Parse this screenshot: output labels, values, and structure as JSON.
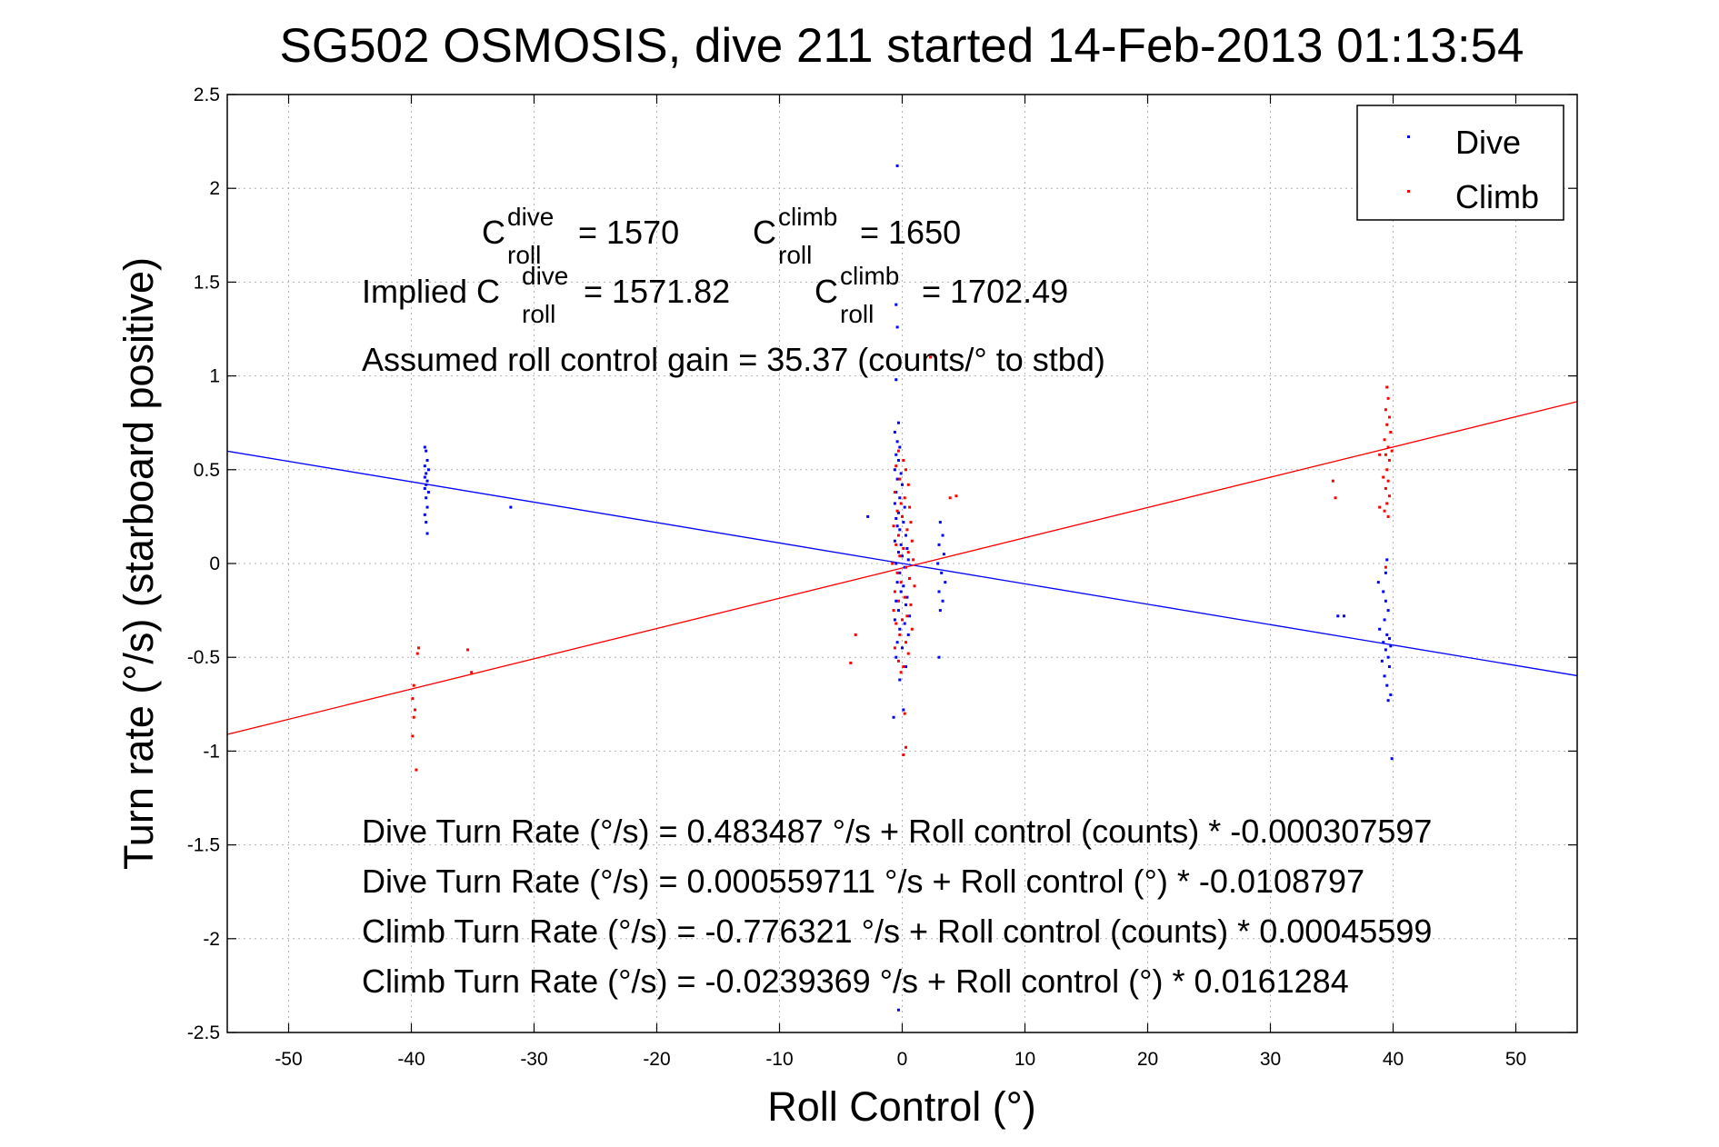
{
  "chart_data": {
    "type": "scatter",
    "title": "SG502 OSMOSIS, dive 211 started 14-Feb-2013 01:13:54",
    "xlabel": "Roll Control (°)",
    "ylabel": "Turn rate (°/s) (starboard positive)",
    "xlim": [
      -55,
      55
    ],
    "ylim": [
      -2.5,
      2.5
    ],
    "xticks": [
      -50,
      -40,
      -30,
      -20,
      -10,
      0,
      10,
      20,
      30,
      40,
      50
    ],
    "yticks": [
      -2.5,
      -2,
      -1.5,
      -1,
      -0.5,
      0,
      0.5,
      1,
      1.5,
      2,
      2.5
    ],
    "xtick_labels": [
      "-50",
      "-40",
      "-30",
      "-20",
      "-10",
      "0",
      "10",
      "20",
      "30",
      "40",
      "50"
    ],
    "ytick_labels": [
      "-2.5",
      "-2",
      "-1.5",
      "-1",
      "-0.5",
      "0",
      "0.5",
      "1",
      "1.5",
      "2",
      "2.5"
    ],
    "grid": true,
    "legend": {
      "position": "top-right",
      "entries": [
        "Dive",
        "Climb"
      ]
    },
    "colors": {
      "dive": "#0000ff",
      "climb": "#ff0000"
    },
    "series": [
      {
        "name": "Dive",
        "color": "#0000ff",
        "points": [
          [
            -38.9,
            0.62
          ],
          [
            -38.8,
            0.6
          ],
          [
            -38.7,
            0.55
          ],
          [
            -38.9,
            0.52
          ],
          [
            -38.6,
            0.5
          ],
          [
            -38.8,
            0.48
          ],
          [
            -38.9,
            0.46
          ],
          [
            -38.7,
            0.44
          ],
          [
            -38.8,
            0.42
          ],
          [
            -38.9,
            0.4
          ],
          [
            -38.6,
            0.38
          ],
          [
            -38.8,
            0.35
          ],
          [
            -38.7,
            0.3
          ],
          [
            -38.9,
            0.26
          ],
          [
            -38.8,
            0.22
          ],
          [
            -38.7,
            0.16
          ],
          [
            -31.9,
            0.3
          ],
          [
            -0.4,
            2.12
          ],
          [
            -0.5,
            1.38
          ],
          [
            -0.4,
            1.26
          ],
          [
            -0.5,
            0.98
          ],
          [
            -0.3,
            0.75
          ],
          [
            -0.6,
            0.7
          ],
          [
            -0.4,
            0.65
          ],
          [
            -0.2,
            0.62
          ],
          [
            -0.5,
            0.58
          ],
          [
            -0.3,
            0.55
          ],
          [
            -0.6,
            0.5
          ],
          [
            -0.1,
            0.48
          ],
          [
            -0.4,
            0.45
          ],
          [
            0.0,
            0.42
          ],
          [
            -0.5,
            0.38
          ],
          [
            -0.2,
            0.35
          ],
          [
            -0.6,
            0.32
          ],
          [
            0.2,
            0.3
          ],
          [
            -0.3,
            0.27
          ],
          [
            -0.5,
            0.24
          ],
          [
            0.1,
            0.22
          ],
          [
            -0.4,
            0.2
          ],
          [
            -0.2,
            0.18
          ],
          [
            0.3,
            0.15
          ],
          [
            -0.6,
            0.12
          ],
          [
            -0.1,
            0.1
          ],
          [
            0.4,
            0.08
          ],
          [
            -0.3,
            0.06
          ],
          [
            0.0,
            0.04
          ],
          [
            0.5,
            0.02
          ],
          [
            -0.5,
            0.0
          ],
          [
            0.2,
            -0.02
          ],
          [
            -0.2,
            -0.05
          ],
          [
            0.6,
            -0.08
          ],
          [
            -0.4,
            -0.1
          ],
          [
            0.1,
            -0.12
          ],
          [
            -0.1,
            -0.15
          ],
          [
            0.4,
            -0.18
          ],
          [
            -0.5,
            -0.2
          ],
          [
            0.3,
            -0.22
          ],
          [
            -0.3,
            -0.25
          ],
          [
            0.6,
            -0.28
          ],
          [
            -0.6,
            -0.3
          ],
          [
            0.2,
            -0.32
          ],
          [
            -0.2,
            -0.35
          ],
          [
            0.5,
            -0.38
          ],
          [
            -0.4,
            -0.42
          ],
          [
            0.0,
            -0.45
          ],
          [
            -0.5,
            -0.5
          ],
          [
            0.3,
            -0.55
          ],
          [
            -0.2,
            -0.62
          ],
          [
            0.1,
            -0.78
          ],
          [
            -0.7,
            -0.82
          ],
          [
            -0.3,
            -2.38
          ],
          [
            -2.8,
            0.25
          ],
          [
            3.1,
            0.22
          ],
          [
            3.3,
            0.15
          ],
          [
            3.0,
            0.1
          ],
          [
            3.4,
            0.05
          ],
          [
            2.9,
            0.0
          ],
          [
            3.2,
            -0.05
          ],
          [
            3.5,
            -0.1
          ],
          [
            3.0,
            -0.15
          ],
          [
            3.3,
            -0.2
          ],
          [
            3.1,
            -0.25
          ],
          [
            3.0,
            -0.5
          ],
          [
            35.5,
            -0.28
          ],
          [
            36.0,
            -0.28
          ],
          [
            38.8,
            -0.1
          ],
          [
            39.2,
            -0.15
          ],
          [
            39.4,
            -0.2
          ],
          [
            39.6,
            -0.25
          ],
          [
            39.3,
            -0.3
          ],
          [
            38.9,
            -0.35
          ],
          [
            39.5,
            -0.38
          ],
          [
            39.7,
            -0.4
          ],
          [
            39.2,
            -0.42
          ],
          [
            39.8,
            -0.44
          ],
          [
            39.4,
            -0.46
          ],
          [
            39.6,
            -0.5
          ],
          [
            39.1,
            -0.52
          ],
          [
            39.7,
            -0.55
          ],
          [
            39.3,
            -0.6
          ],
          [
            39.5,
            -0.65
          ],
          [
            39.8,
            -0.7
          ],
          [
            39.6,
            -0.73
          ],
          [
            39.5,
            0.02
          ],
          [
            39.4,
            -0.05
          ],
          [
            39.9,
            -1.04
          ]
        ]
      },
      {
        "name": "Climb",
        "color": "#ff0000",
        "points": [
          [
            -39.8,
            -0.65
          ],
          [
            -39.9,
            -0.72
          ],
          [
            -39.7,
            -0.78
          ],
          [
            -39.8,
            -0.82
          ],
          [
            -39.9,
            -0.92
          ],
          [
            -39.6,
            -1.1
          ],
          [
            -39.4,
            -0.45
          ],
          [
            -39.5,
            -0.48
          ],
          [
            -35.4,
            -0.46
          ],
          [
            -35.1,
            -0.58
          ],
          [
            -4.2,
            -0.53
          ],
          [
            -3.8,
            -0.38
          ],
          [
            3.9,
            0.35
          ],
          [
            4.4,
            0.36
          ],
          [
            2.3,
            1.1
          ],
          [
            -0.3,
            0.6
          ],
          [
            0.1,
            0.55
          ],
          [
            -0.5,
            0.52
          ],
          [
            0.3,
            0.5
          ],
          [
            -0.2,
            0.45
          ],
          [
            0.5,
            0.42
          ],
          [
            -0.6,
            0.38
          ],
          [
            0.2,
            0.35
          ],
          [
            -0.1,
            0.32
          ],
          [
            0.6,
            0.3
          ],
          [
            -0.4,
            0.28
          ],
          [
            0.0,
            0.25
          ],
          [
            0.7,
            0.22
          ],
          [
            -0.7,
            0.2
          ],
          [
            0.4,
            0.18
          ],
          [
            -0.3,
            0.15
          ],
          [
            0.8,
            0.12
          ],
          [
            -0.5,
            0.1
          ],
          [
            0.1,
            0.08
          ],
          [
            0.5,
            0.06
          ],
          [
            -0.2,
            0.04
          ],
          [
            0.9,
            0.02
          ],
          [
            -0.8,
            0.0
          ],
          [
            0.3,
            -0.02
          ],
          [
            -0.4,
            -0.05
          ],
          [
            0.6,
            -0.08
          ],
          [
            -0.1,
            -0.1
          ],
          [
            1.0,
            -0.12
          ],
          [
            -0.6,
            -0.15
          ],
          [
            0.2,
            -0.18
          ],
          [
            -0.3,
            -0.2
          ],
          [
            0.7,
            -0.22
          ],
          [
            -0.7,
            -0.25
          ],
          [
            0.4,
            -0.28
          ],
          [
            0.0,
            -0.3
          ],
          [
            -0.5,
            -0.32
          ],
          [
            0.8,
            -0.35
          ],
          [
            -0.2,
            -0.38
          ],
          [
            0.3,
            -0.42
          ],
          [
            -0.6,
            -0.45
          ],
          [
            0.5,
            -0.48
          ],
          [
            -0.3,
            -0.52
          ],
          [
            0.1,
            -0.55
          ],
          [
            -0.1,
            -0.58
          ],
          [
            0.2,
            -0.8
          ],
          [
            0.3,
            -0.98
          ],
          [
            0.1,
            -1.02
          ],
          [
            35.1,
            0.44
          ],
          [
            35.3,
            0.35
          ],
          [
            39.5,
            0.94
          ],
          [
            39.6,
            0.88
          ],
          [
            39.4,
            0.82
          ],
          [
            39.7,
            0.78
          ],
          [
            39.5,
            0.74
          ],
          [
            39.8,
            0.7
          ],
          [
            39.3,
            0.66
          ],
          [
            39.6,
            0.62
          ],
          [
            39.9,
            0.6
          ],
          [
            39.4,
            0.58
          ],
          [
            39.7,
            0.55
          ],
          [
            38.9,
            0.58
          ],
          [
            39.5,
            0.5
          ],
          [
            39.2,
            0.46
          ],
          [
            39.6,
            0.44
          ],
          [
            39.4,
            0.4
          ],
          [
            39.7,
            0.36
          ],
          [
            39.5,
            0.32
          ],
          [
            39.3,
            0.28
          ],
          [
            38.9,
            0.3
          ],
          [
            39.6,
            0.25
          ],
          [
            39.4,
            -0.02
          ]
        ]
      }
    ],
    "fit_lines": [
      {
        "series": "Dive",
        "color": "#0000ff",
        "x": [
          -55,
          55
        ],
        "y": [
          0.599,
          -0.598
        ]
      },
      {
        "series": "Climb",
        "color": "#ff0000",
        "x": [
          -55,
          55
        ],
        "y": [
          -0.911,
          0.863
        ]
      }
    ]
  },
  "annotations": {
    "c_dive_base": "C",
    "c_dive_sup": "dive",
    "c_dive_sub": "roll",
    "c_dive_value": "= 1570",
    "c_climb_base": "C",
    "c_climb_sup": "climb",
    "c_climb_sub": "roll",
    "c_climb_value": "= 1650",
    "implied_prefix": "Implied C",
    "implied_dive_sup": "dive",
    "implied_dive_sub": "roll",
    "implied_dive_value": "= 1571.82",
    "implied_climb_base": "C",
    "implied_climb_sup": "climb",
    "implied_climb_sub": "roll",
    "implied_climb_value": "= 1702.49",
    "gain": "Assumed roll control gain = 35.37 (counts/° to stbd)",
    "eq1": "Dive Turn Rate (°/s) = 0.483487 °/s + Roll control (counts) * -0.000307597",
    "eq2": "Dive Turn Rate (°/s) = 0.000559711 °/s + Roll control (°) * -0.0108797",
    "eq3": "Climb Turn Rate (°/s) = -0.776321 °/s + Roll control (counts) * 0.00045599",
    "eq4": "Climb Turn Rate (°/s) = -0.0239369 °/s + Roll control (°) * 0.0161284"
  }
}
